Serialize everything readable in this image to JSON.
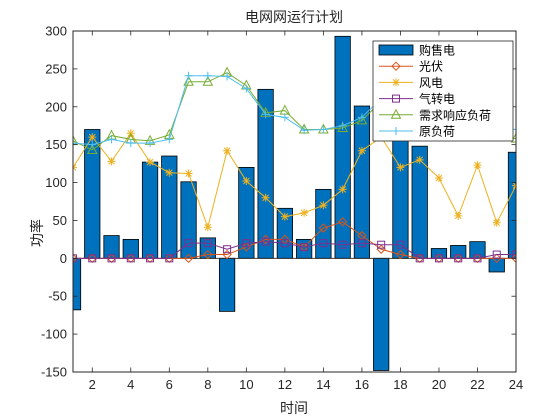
{
  "chart_data": {
    "type": "bar",
    "title": "电网网运行计划",
    "xlabel": "时间",
    "ylabel": "功率",
    "xlim": [
      1,
      24
    ],
    "ylim": [
      -150,
      300
    ],
    "xticks": [
      2,
      4,
      6,
      8,
      10,
      12,
      14,
      16,
      18,
      20,
      22,
      24
    ],
    "yticks": [
      -150,
      -100,
      -50,
      0,
      50,
      100,
      150,
      200,
      250,
      300
    ],
    "x": [
      1,
      2,
      3,
      4,
      5,
      6,
      7,
      8,
      9,
      10,
      11,
      12,
      13,
      14,
      15,
      16,
      17,
      18,
      19,
      20,
      21,
      22,
      23,
      24
    ],
    "legend_position": "top-right",
    "series": [
      {
        "name": "购售电",
        "kind": "bar",
        "color": "#0072BD",
        "values": [
          -68,
          170,
          30,
          25,
          127,
          135,
          101,
          27,
          -70,
          120,
          223,
          66,
          25,
          91,
          293,
          201,
          -148,
          165,
          148,
          13,
          17,
          22,
          -18,
          140
        ]
      },
      {
        "name": "光伏",
        "kind": "line",
        "marker": "diamond",
        "color": "#D95319",
        "values": [
          0,
          0,
          0,
          0,
          0,
          0,
          0,
          5,
          5,
          15,
          25,
          25,
          15,
          40,
          48,
          30,
          12,
          5,
          0,
          0,
          0,
          0,
          0,
          0
        ]
      },
      {
        "name": "风电",
        "kind": "line",
        "marker": "asterisk",
        "color": "#EDB120",
        "values": [
          120,
          160,
          128,
          165,
          127,
          113,
          112,
          41,
          142,
          102,
          80,
          55,
          60,
          70,
          91,
          142,
          160,
          120,
          130,
          106,
          56,
          123,
          47,
          96
        ]
      },
      {
        "name": "气转电",
        "kind": "line",
        "marker": "square",
        "color": "#7E2F8E",
        "values": [
          0,
          0,
          0,
          0,
          0,
          0,
          20,
          20,
          12,
          20,
          22,
          20,
          15,
          20,
          18,
          20,
          18,
          18,
          0,
          0,
          0,
          0,
          5,
          5
        ]
      },
      {
        "name": "需求响应负荷",
        "kind": "line",
        "marker": "triangle",
        "color": "#77AC30",
        "values": [
          155,
          143,
          162,
          157,
          155,
          163,
          233,
          233,
          245,
          228,
          192,
          195,
          170,
          170,
          172,
          182,
          207,
          212,
          220,
          205,
          205,
          198,
          160,
          158
        ]
      },
      {
        "name": "原负荷",
        "kind": "line",
        "marker": "plus",
        "color": "#4DBEEE",
        "values": [
          152,
          150,
          157,
          152,
          152,
          157,
          241,
          241,
          240,
          224,
          190,
          186,
          169,
          170,
          175,
          186,
          211,
          214,
          221,
          205,
          205,
          198,
          172,
          170
        ]
      }
    ]
  }
}
